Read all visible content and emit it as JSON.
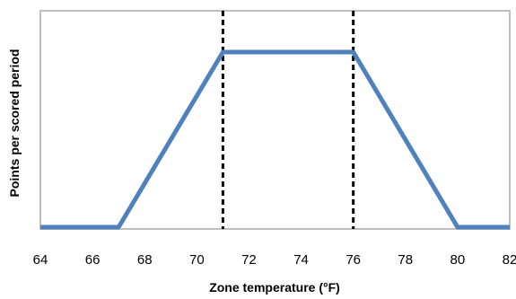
{
  "chart_data": {
    "type": "line",
    "title": "",
    "xlabel": "Zone temperature (°F)",
    "ylabel": "Points per scored period",
    "xlim": [
      64,
      82
    ],
    "ylim": [
      0,
      1
    ],
    "x_ticks": [
      64,
      66,
      68,
      70,
      72,
      74,
      76,
      78,
      80,
      82
    ],
    "x_tick_labels": [
      "64",
      "66",
      "68",
      "70",
      "72",
      "74",
      "76",
      "78",
      "80",
      "82"
    ],
    "y_ticks_labeled": false,
    "grid": false,
    "legend": "none",
    "series": [
      {
        "color": "#4f81bd",
        "x": [
          64,
          67,
          71,
          76,
          80,
          82
        ],
        "y": [
          0,
          0,
          1,
          1,
          0,
          0
        ]
      }
    ],
    "reference_lines": [
      {
        "orientation": "vertical",
        "x": 71,
        "style": "dashed",
        "color": "#000000"
      },
      {
        "orientation": "vertical",
        "x": 76,
        "style": "dashed",
        "color": "#000000"
      }
    ],
    "colors": {
      "plot_border": "#bfbfbf",
      "series": "#4f81bd",
      "reference": "#000000"
    }
  }
}
